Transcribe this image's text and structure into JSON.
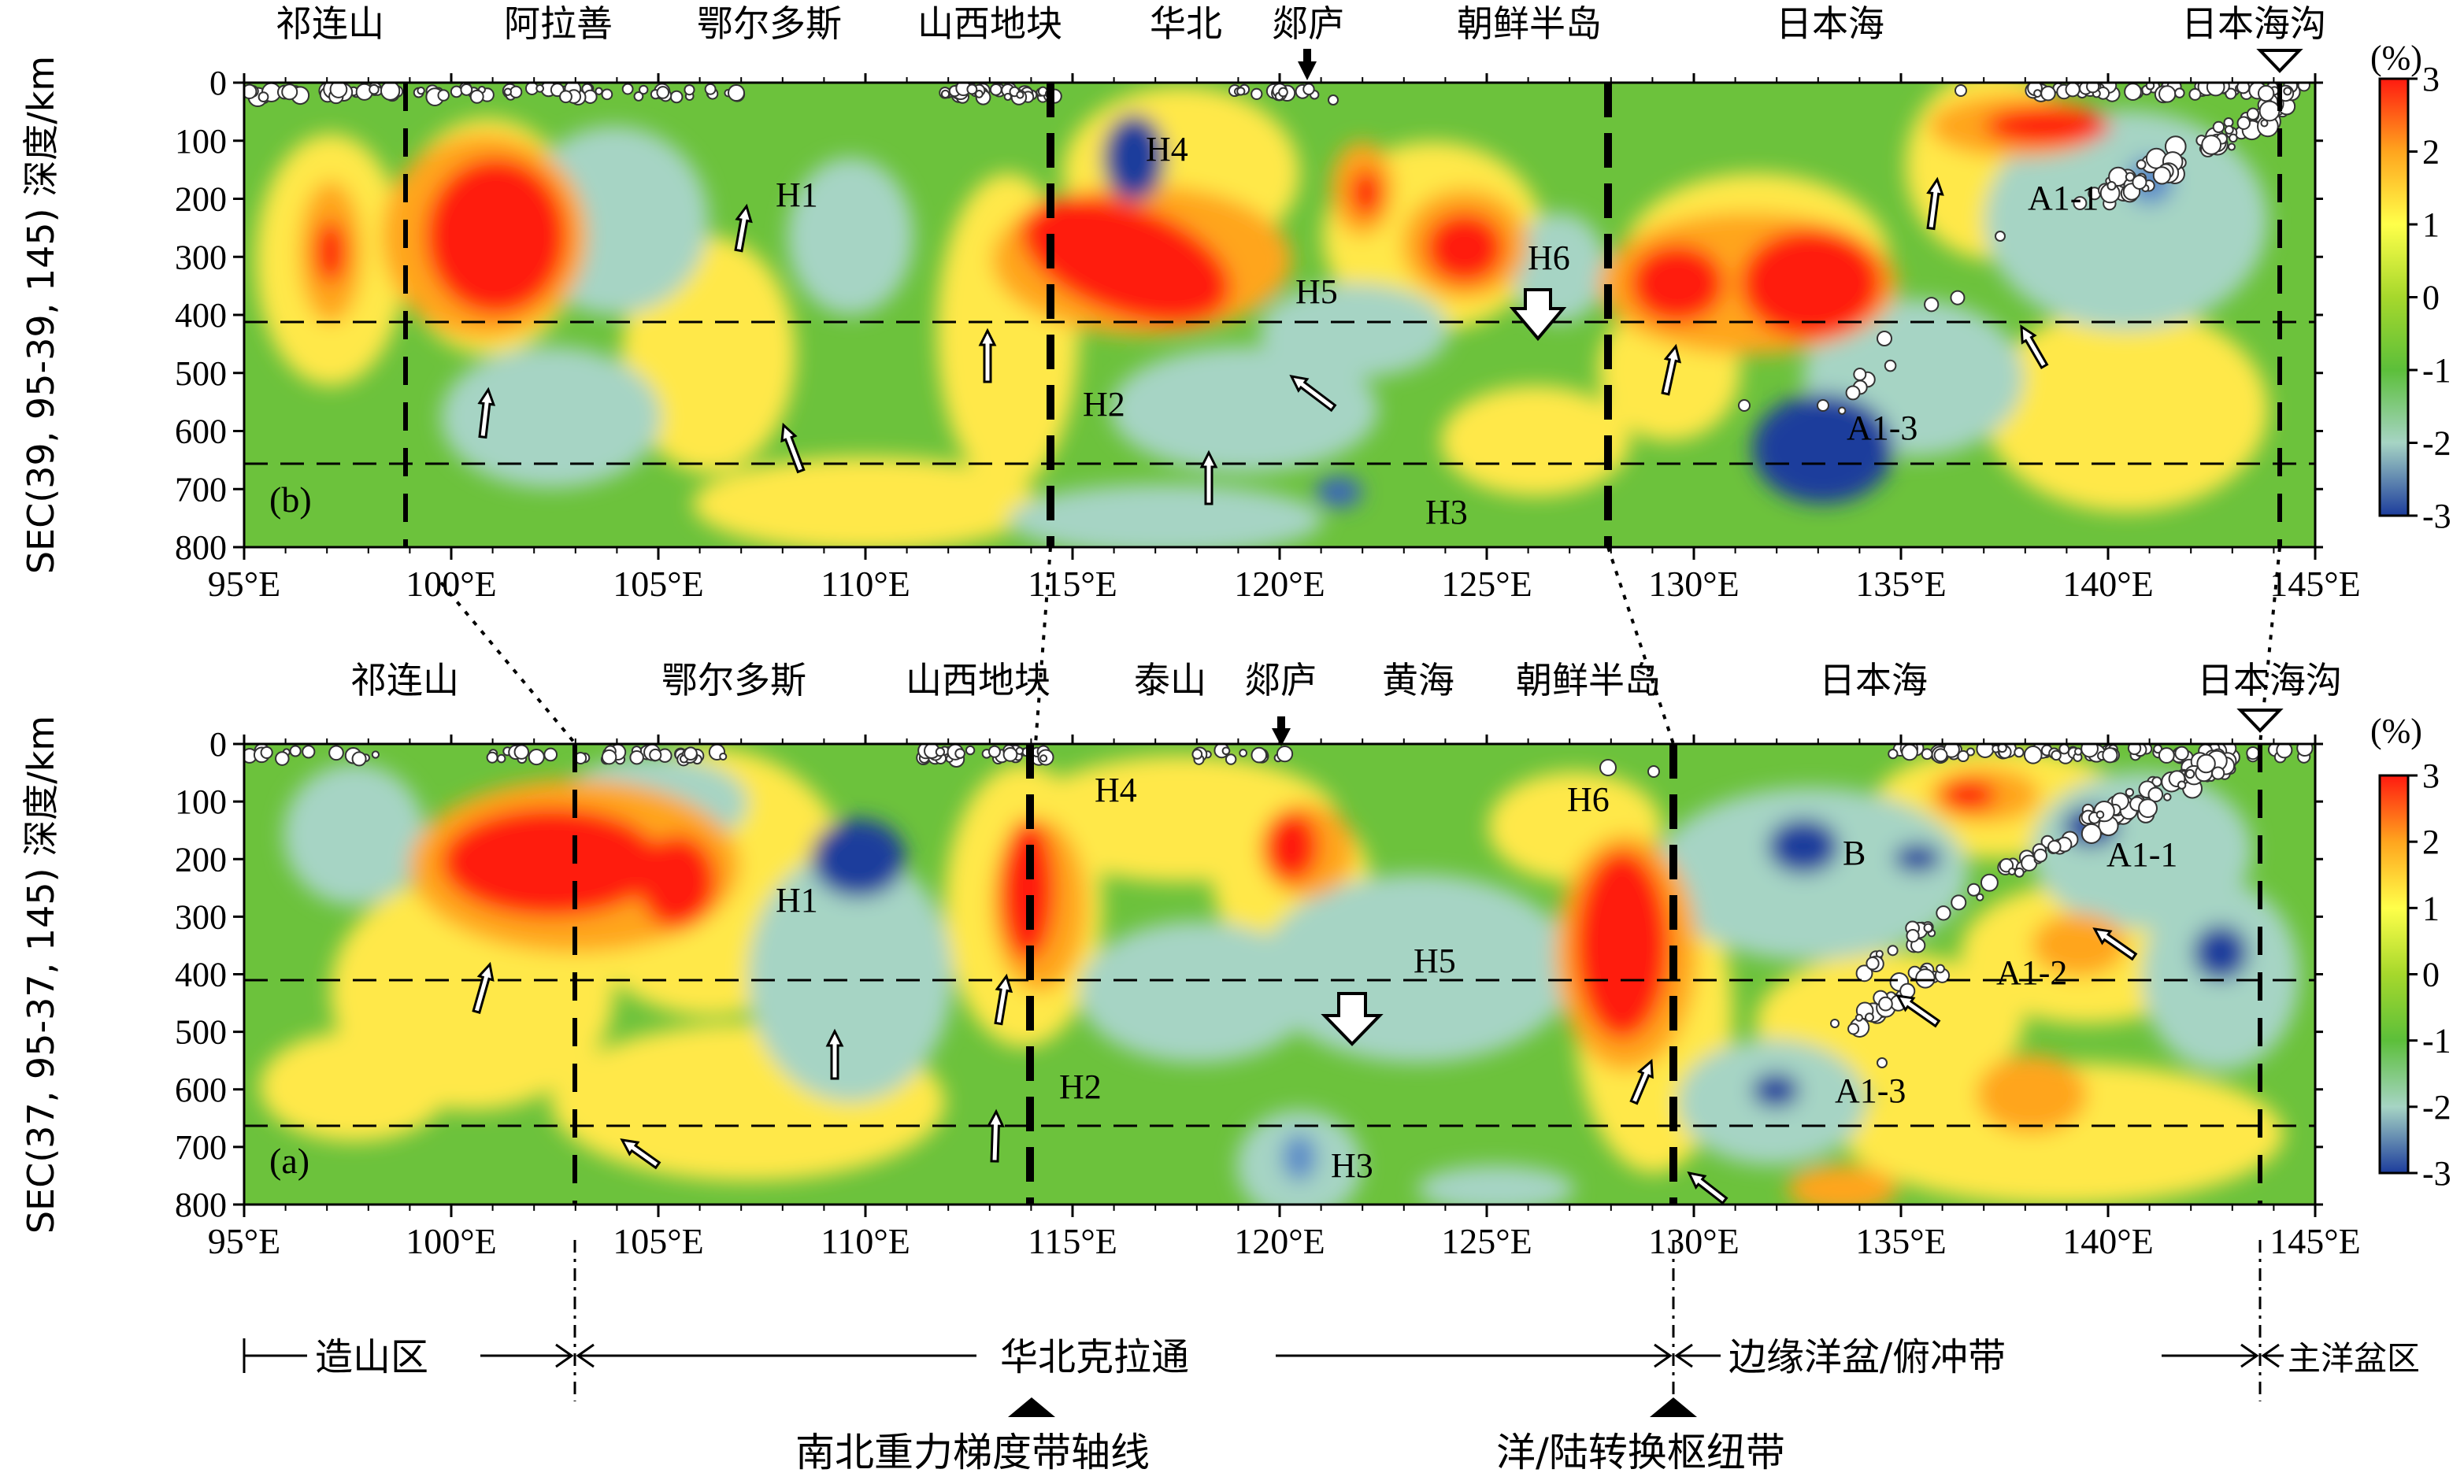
{
  "axes": {
    "x_ticks": [
      "95°E",
      "100°E",
      "105°E",
      "110°E",
      "115°E",
      "120°E",
      "125°E",
      "130°E",
      "135°E",
      "140°E",
      "145°E"
    ],
    "y_ticks": [
      "0",
      "100",
      "200",
      "300",
      "400",
      "500",
      "600",
      "700",
      "800"
    ],
    "x_range": [
      95,
      145
    ],
    "depth_range": [
      0,
      800
    ],
    "depth_ref_lines": [
      410,
      660
    ]
  },
  "colorbar": {
    "unit": "(%)",
    "ticks": [
      "3",
      "2",
      "1",
      "0",
      "-1",
      "-2",
      "-3"
    ],
    "range": [
      -3,
      3
    ],
    "colors": [
      "#ff1a10",
      "#ffa51e",
      "#ffff4a",
      "#a6d82c",
      "#5cbf3a",
      "#a6d4c4",
      "#1c3c9c"
    ]
  },
  "panel_b": {
    "panel_label": "(b)",
    "ylabel": "SEC(39, 95-39, 145)  深度/km",
    "top_labels": [
      "祁连山",
      "阿拉善",
      "鄂尔多斯",
      "山西地块",
      "华北",
      "郯庐",
      "朝鲜半岛",
      "日本海",
      "日本海沟"
    ],
    "features": [
      "H1",
      "H2",
      "H3",
      "H4",
      "H5",
      "H6",
      "A1-1",
      "A1-3"
    ],
    "boundaries_lon": [
      99,
      114.5,
      127.9,
      144.3
    ]
  },
  "panel_a": {
    "panel_label": "(a)",
    "ylabel": "SEC(37, 95-37, 145)  深度/km",
    "top_labels": [
      "祁连山",
      "鄂尔多斯",
      "山西地块",
      "泰山",
      "郯庐",
      "黄海",
      "朝鲜半岛",
      "日本海",
      "日本海沟"
    ],
    "features": [
      "H1",
      "H2",
      "H3",
      "H4",
      "H5",
      "H6",
      "B",
      "A1-1",
      "A1-2",
      "A1-3"
    ],
    "boundaries_lon": [
      103,
      114,
      129.5,
      143.5
    ]
  },
  "legend_bottom": {
    "zones": [
      "造山区",
      "华北克拉通",
      "边缘洋盆/俯冲带",
      "主洋盆区"
    ],
    "markers": [
      "南北重力梯度带轴线",
      "洋/陆转换枢纽带"
    ]
  }
}
